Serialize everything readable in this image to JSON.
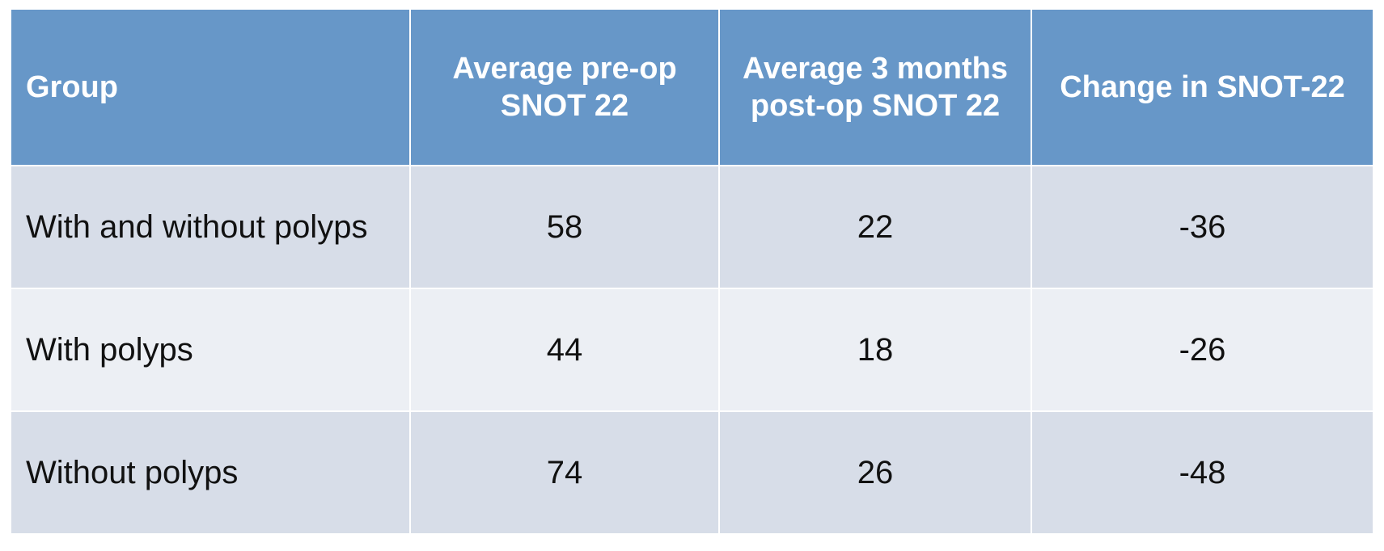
{
  "table": {
    "headers": [
      "Group",
      "Average pre-op SNOT 22",
      "Average 3 months post-op SNOT 22",
      "Change in SNOT-22"
    ],
    "rows": [
      {
        "group": "With and without polyps",
        "pre_op": "58",
        "post_op": "22",
        "change": "-36"
      },
      {
        "group": "With polyps",
        "pre_op": "44",
        "post_op": "18",
        "change": "-26"
      },
      {
        "group": "Without polyps",
        "pre_op": "74",
        "post_op": "26",
        "change": "-48"
      }
    ]
  },
  "colors": {
    "header_bg": "#6797c8",
    "row_odd_bg": "#d7dde8",
    "row_even_bg": "#eceff4",
    "header_text": "#ffffff",
    "body_text": "#111111"
  }
}
